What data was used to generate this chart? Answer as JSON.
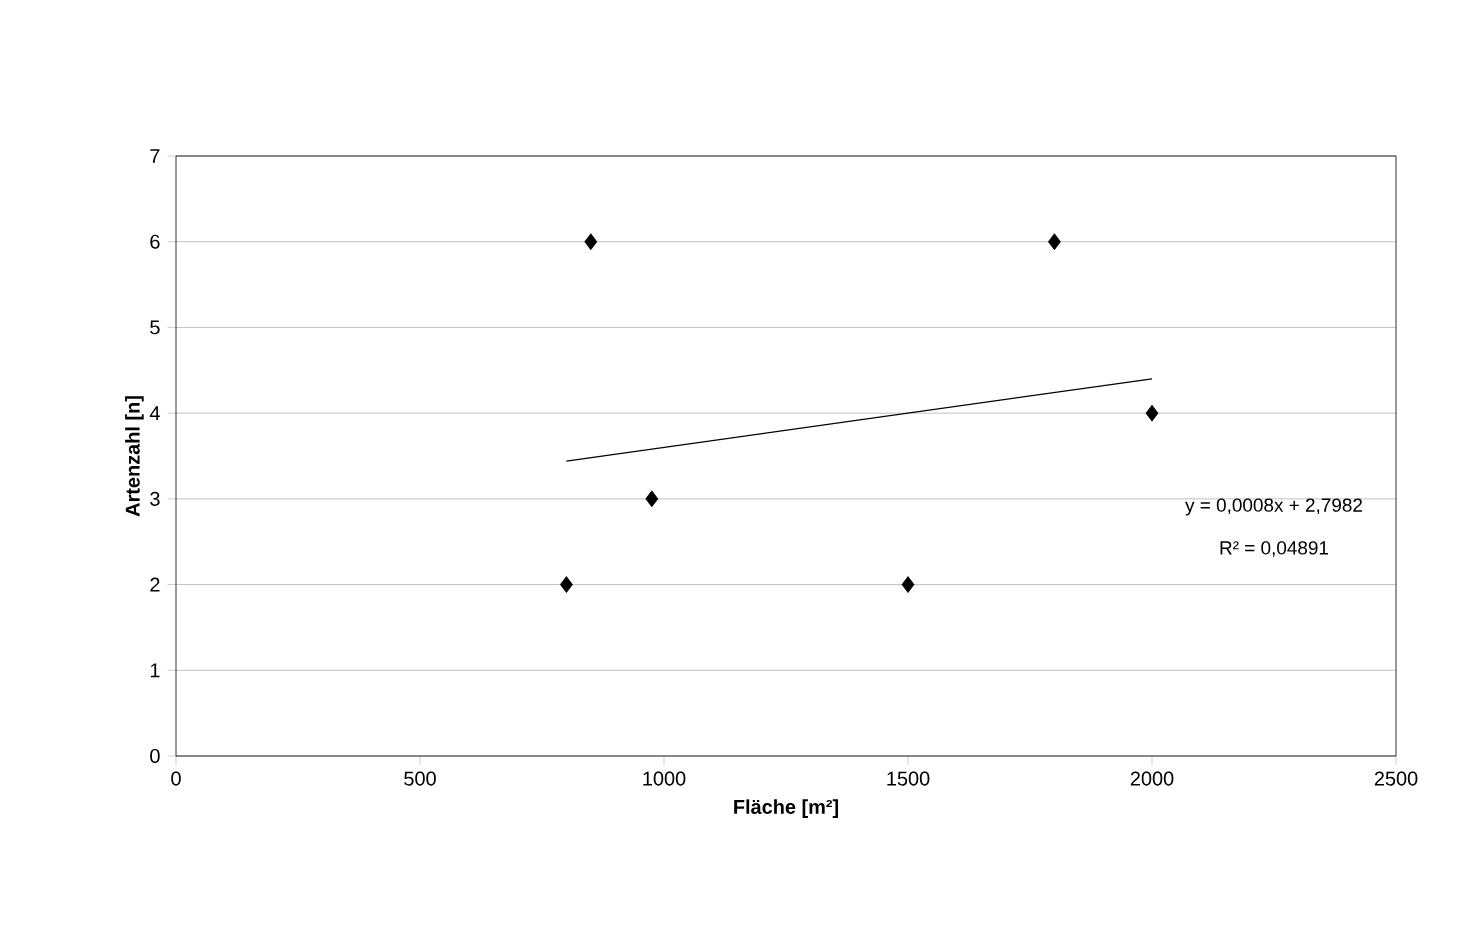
{
  "chart_data": {
    "type": "scatter",
    "xlabel": "Fläche [m²]",
    "ylabel": "Artenzahl [n]",
    "xlim": [
      0,
      2500
    ],
    "xticks": [
      0,
      500,
      1000,
      1500,
      2000,
      2500
    ],
    "ylim": [
      0,
      7
    ],
    "yticks": [
      0,
      1,
      2,
      3,
      4,
      5,
      6,
      7
    ],
    "grid": "y",
    "marker": "diamond",
    "series": [
      {
        "color": "#000000",
        "x": [
          800,
          850,
          975,
          1500,
          1800,
          2000
        ],
        "values": [
          2,
          6,
          3,
          2,
          6,
          4
        ]
      },
      {
        "type": "line",
        "color": "#000000",
        "marker": "none",
        "line_style": "solid",
        "x": [
          800,
          2000
        ],
        "values": [
          3.44,
          4.4
        ]
      }
    ],
    "annotations": [
      "y = 0,0008x + 2,7982",
      "R² = 0,04891"
    ]
  }
}
